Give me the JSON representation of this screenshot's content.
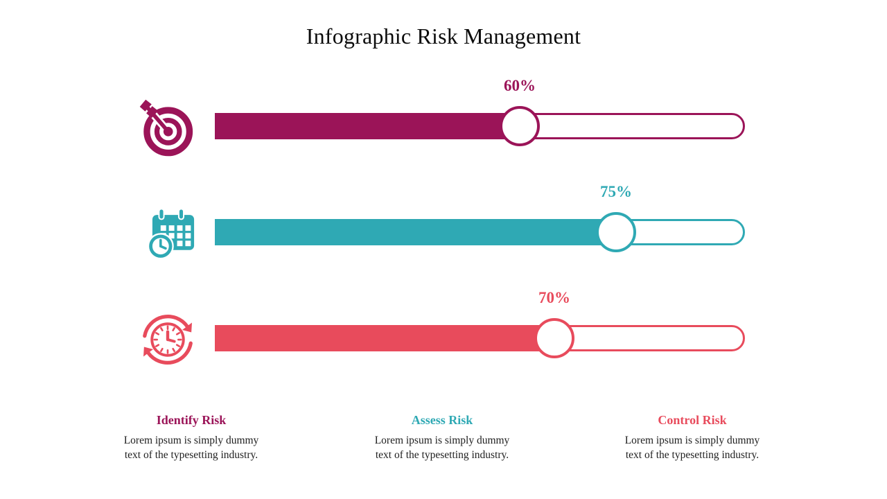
{
  "title": "Infographic Risk Management",
  "items": [
    {
      "name": "Identify Risk",
      "icon": "target-arrow-icon",
      "percent_label": "60%",
      "value": 60,
      "color": "#9B1458",
      "desc_line1": "Lorem ipsum is simply dummy",
      "desc_line2": "text of the typesetting industry."
    },
    {
      "name": "Assess Risk",
      "icon": "calendar-clock-icon",
      "percent_label": "75%",
      "value": 75,
      "color": "#2FA9B4",
      "desc_line1": "Lorem ipsum is simply dummy",
      "desc_line2": "text of the typesetting industry."
    },
    {
      "name": "Control Risk",
      "icon": "clock-refresh-icon",
      "percent_label": "70%",
      "value": 70,
      "color": "#E84B5C",
      "desc_line1": "Lorem ipsum is simply dummy",
      "desc_line2": "text of the typesetting industry."
    }
  ],
  "chart_data": {
    "type": "bar",
    "title": "Infographic Risk Management",
    "categories": [
      "Identify Risk",
      "Assess Risk",
      "Control Risk"
    ],
    "values": [
      60,
      75,
      70
    ],
    "unit": "%",
    "colors": [
      "#9B1458",
      "#2FA9B4",
      "#E84B5C"
    ],
    "xlim": [
      0,
      100
    ],
    "legend": "none",
    "grid": false,
    "orientation": "horizontal"
  }
}
